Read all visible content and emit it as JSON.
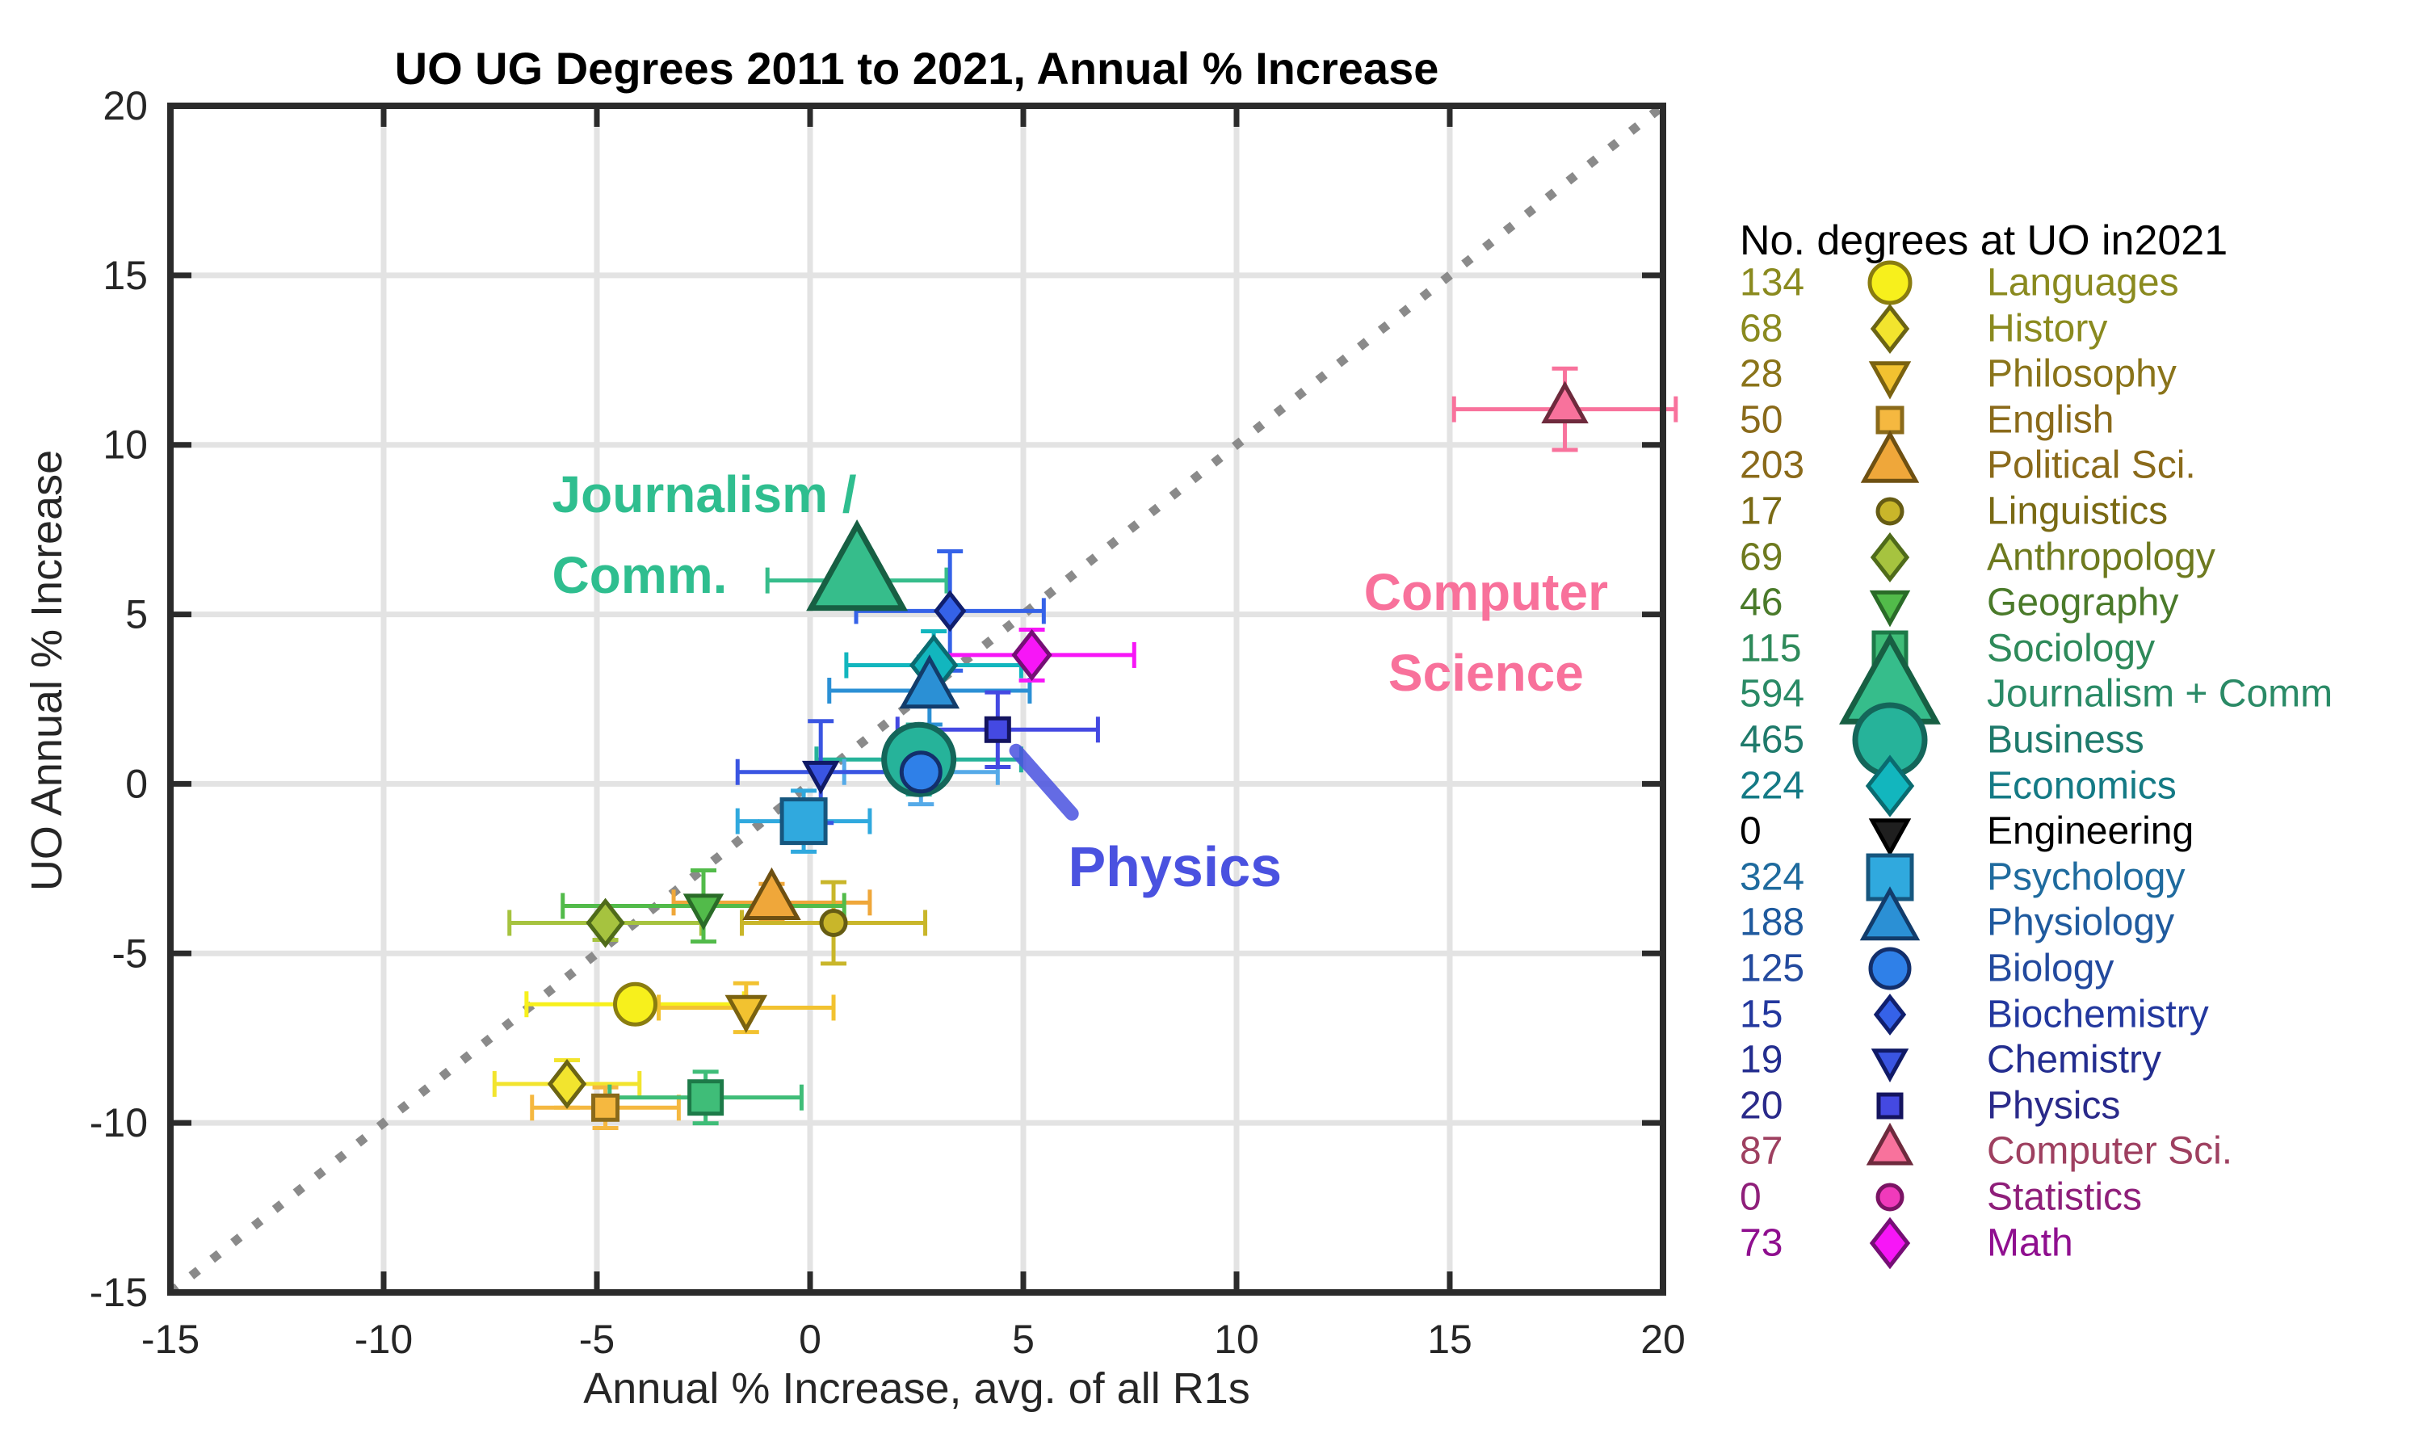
{
  "chart_data": {
    "type": "scatter",
    "title": "UO UG Degrees 2011 to 2021, Annual % Increase",
    "xlabel": "Annual % Increase, avg. of all R1s",
    "ylabel": "UO Annual % Increase",
    "xlim": [
      -15,
      20
    ],
    "ylim": [
      -15,
      20
    ],
    "ticks": [
      -15,
      -10,
      -5,
      0,
      5,
      10,
      15,
      20
    ],
    "grid": true,
    "grid_color": "#e3e3e3",
    "axis_color": "#2b2b2b",
    "identity_line": {
      "from": -15,
      "to": 20,
      "color": "#8a8a8a",
      "style": "dotted"
    },
    "legend": {
      "title": "No. degrees at UO in2021",
      "position": "right-outside"
    },
    "series": [
      {
        "name": "Languages",
        "count": 134,
        "marker": "circle",
        "fill": "#f7f01c",
        "edge": "#8a7d10",
        "text_color": "#8a8a1f",
        "x": -4.1,
        "y": -6.5,
        "xerr": 2.55,
        "yerr": null,
        "size": 25
      },
      {
        "name": "History",
        "count": 68,
        "marker": "diamond",
        "fill": "#f2e42e",
        "edge": "#6b6414",
        "text_color": "#8a8a1f",
        "x": -5.7,
        "y": -8.85,
        "xerr": 1.7,
        "yerr": 0.7,
        "size": 21
      },
      {
        "name": "Philosophy",
        "count": 28,
        "marker": "triangle-down",
        "fill": "#f2c230",
        "edge": "#7a6210",
        "text_color": "#8a741a",
        "x": -1.5,
        "y": -6.6,
        "xerr": 2.05,
        "yerr": 0.72,
        "size": 22
      },
      {
        "name": "English",
        "count": 50,
        "marker": "square",
        "fill": "#f5b840",
        "edge": "#8a6a1a",
        "text_color": "#8a6a1a",
        "x": -4.8,
        "y": -9.55,
        "xerr": 1.72,
        "yerr": 0.6,
        "size": 15
      },
      {
        "name": "Political Sci.",
        "count": 203,
        "marker": "triangle-up",
        "fill": "#efa73a",
        "edge": "#6e5012",
        "text_color": "#8a6a1a",
        "x": -0.9,
        "y": -3.5,
        "xerr": 2.3,
        "yerr": 0.55,
        "size": 32
      },
      {
        "name": "Linguistics",
        "count": 17,
        "marker": "circle",
        "fill": "#c9b62a",
        "edge": "#665c14",
        "text_color": "#7a6a14",
        "x": 0.55,
        "y": -4.1,
        "xerr": 2.15,
        "yerr": 1.2,
        "size": 15
      },
      {
        "name": "Anthropology",
        "count": 69,
        "marker": "diamond",
        "fill": "#a6c33f",
        "edge": "#4f6b1a",
        "text_color": "#6e7a1f",
        "x": -4.8,
        "y": -4.1,
        "xerr": 2.25,
        "yerr": 0.5,
        "size": 21
      },
      {
        "name": "Geography",
        "count": 46,
        "marker": "triangle-down",
        "fill": "#52bb4a",
        "edge": "#2a6b28",
        "text_color": "#4a7a2a",
        "x": -2.5,
        "y": -3.6,
        "xerr": 3.3,
        "yerr": 1.05,
        "size": 21
      },
      {
        "name": "Sociology",
        "count": 115,
        "marker": "square",
        "fill": "#3fbd78",
        "edge": "#1d7a48",
        "text_color": "#2e8a5a",
        "x": -2.45,
        "y": -9.25,
        "xerr": 2.25,
        "yerr": 0.76,
        "size": 20
      },
      {
        "name": "Journalism + Comm",
        "count": 594,
        "marker": "triangle-up",
        "fill": "#36bd8b",
        "edge": "#175f43",
        "text_color": "#2a8a66",
        "x": 1.1,
        "y": 6.0,
        "xerr": 2.1,
        "yerr": null,
        "size": 57
      },
      {
        "name": "Business",
        "count": 465,
        "marker": "circle",
        "fill": "#26b39a",
        "edge": "#14665a",
        "text_color": "#1f7a6b",
        "x": 2.55,
        "y": 0.72,
        "xerr": 2.4,
        "yerr": 1.03,
        "size": 43
      },
      {
        "name": "Economics",
        "count": 224,
        "marker": "diamond",
        "fill": "#12b6be",
        "edge": "#0a6b70",
        "text_color": "#147a85",
        "x": 2.9,
        "y": 3.5,
        "xerr": 2.05,
        "yerr": 1.0,
        "size": 27
      },
      {
        "name": "Engineering",
        "count": 0,
        "marker": "triangle-down",
        "fill": "#1f1f1f",
        "edge": "#000000",
        "text_color": "#000000",
        "x": null,
        "y": null,
        "xerr": null,
        "yerr": null,
        "size": 22
      },
      {
        "name": "Psychology",
        "count": 324,
        "marker": "square",
        "fill": "#30a9de",
        "edge": "#16567e",
        "text_color": "#1f6b9e",
        "x": -0.15,
        "y": -1.1,
        "xerr": 1.55,
        "yerr": 0.9,
        "size": 27
      },
      {
        "name": "Physiology",
        "count": 188,
        "marker": "triangle-up",
        "fill": "#2b90d5",
        "edge": "#123c6b",
        "text_color": "#1f5a9e",
        "x": 2.8,
        "y": 2.75,
        "xerr": 2.35,
        "yerr": 1.0,
        "size": 33
      },
      {
        "name": "Biology",
        "count": 125,
        "marker": "circle",
        "fill": "#2f80e8",
        "edge": "#132f6b",
        "text_color": "#234a9e",
        "x": 2.6,
        "y": 0.35,
        "xerr": 1.8,
        "yerr": 0.95,
        "size": 24,
        "err_color": "#55aae8"
      },
      {
        "name": "Biochemistry",
        "count": 15,
        "marker": "diamond",
        "fill": "#3562e8",
        "edge": "#101f6e",
        "text_color": "#23389e",
        "x": 3.28,
        "y": 5.1,
        "xerr": 2.2,
        "yerr": 1.76,
        "size": 17
      },
      {
        "name": "Chemistry",
        "count": 19,
        "marker": "triangle-down",
        "fill": "#3a55e2",
        "edge": "#101a66",
        "text_color": "#232d8f",
        "x": 0.25,
        "y": 0.35,
        "xerr": 1.95,
        "yerr": 1.5,
        "size": 19
      },
      {
        "name": "Physics",
        "count": 20,
        "marker": "square",
        "fill": "#4449e2",
        "edge": "#14145f",
        "text_color": "#2a2a8a",
        "x": 4.4,
        "y": 1.6,
        "xerr": 2.35,
        "yerr": 1.1,
        "size": 14
      },
      {
        "name": "Computer Sci.",
        "count": 87,
        "marker": "triangle-up",
        "fill": "#f8729c",
        "edge": "#6e2a3d",
        "text_color": "#9e4060",
        "x": 17.7,
        "y": 11.05,
        "xerr": 2.6,
        "yerr": 1.2,
        "size": 25
      },
      {
        "name": "Statistics",
        "count": 0,
        "marker": "circle",
        "fill": "#f03abb",
        "edge": "#7a1464",
        "text_color": "#8f1f7a",
        "x": null,
        "y": null,
        "xerr": null,
        "yerr": null,
        "size": 15
      },
      {
        "name": "Math",
        "count": 73,
        "marker": "diamond",
        "fill": "#f716f7",
        "edge": "#750f75",
        "text_color": "#8f0f8f",
        "x": 5.2,
        "y": 3.8,
        "xerr": 2.4,
        "yerr": 0.75,
        "size": 22
      }
    ],
    "annotations": [
      {
        "id": "journalism-comm",
        "lines": [
          "Journalism /",
          "Comm."
        ],
        "color": "#2fbe8f",
        "x": -6.05,
        "y": 8.55,
        "align": "left",
        "font": 64
      },
      {
        "id": "computer-science",
        "lines": [
          "Computer",
          "Science"
        ],
        "color": "#f8719b",
        "x": 15.85,
        "y": 5.67,
        "align": "center",
        "font": 64
      },
      {
        "id": "physics",
        "lines": [
          "Physics"
        ],
        "color": "#4a52e0",
        "x": 6.05,
        "y": -2.55,
        "align": "left",
        "font": 70,
        "leader": {
          "x1": 4.83,
          "y1": 0.98,
          "x2": 6.14,
          "y2": -0.88
        }
      }
    ]
  }
}
